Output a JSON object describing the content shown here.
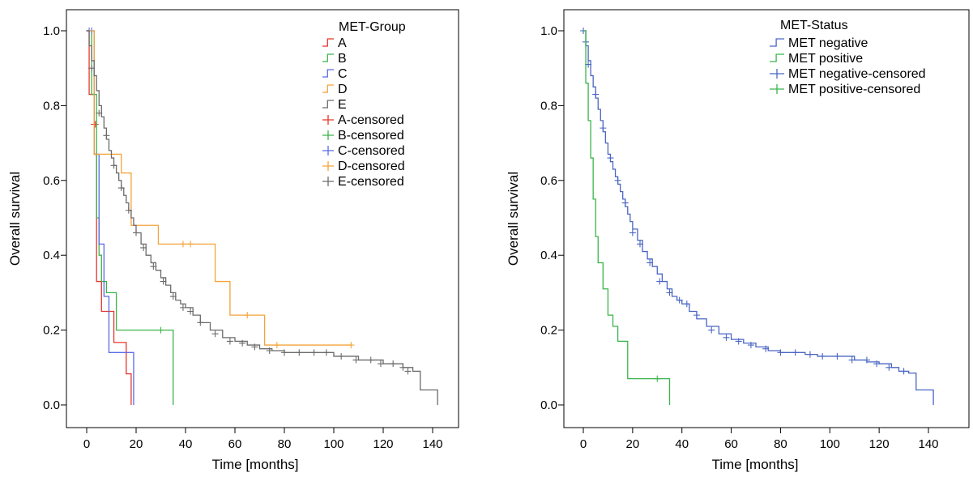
{
  "chart_data": [
    {
      "type": "line",
      "subtype": "kaplan-meier",
      "xlabel": "Time [months]",
      "ylabel": "Overall survival",
      "xlim": [
        -5,
        145
      ],
      "ylim": [
        -0.05,
        1.03
      ],
      "xticks": [
        "0",
        "20",
        "40",
        "60",
        "80",
        "100",
        "120",
        "140"
      ],
      "yticks": [
        "0.0",
        "0.2",
        "0.4",
        "0.6",
        "0.8",
        "1.0"
      ],
      "grid": false,
      "legend": {
        "title": "MET-Group",
        "placement": "top-right",
        "entries": [
          "A",
          "B",
          "C",
          "D",
          "E",
          "A-censored",
          "B-censored",
          "C-censored",
          "D-censored",
          "E-censored"
        ]
      },
      "series": [
        {
          "name": "A",
          "color": "#e8352b",
          "x": [
            0,
            1,
            3,
            4,
            6,
            11,
            16,
            18
          ],
          "y": [
            1.0,
            0.83,
            0.67,
            0.33,
            0.25,
            0.167,
            0.083,
            0.0
          ],
          "censored": [
            [
              3,
              0.75
            ],
            [
              3.5,
              0.75
            ]
          ]
        },
        {
          "name": "B",
          "color": "#3ab54a",
          "x": [
            0,
            2,
            4,
            5,
            6,
            8,
            12,
            35
          ],
          "y": [
            1.0,
            0.83,
            0.5,
            0.4,
            0.33,
            0.3,
            0.2,
            0.0
          ],
          "censored": [
            [
              30,
              0.2
            ]
          ]
        },
        {
          "name": "C",
          "color": "#5a6be6",
          "x": [
            0,
            1,
            3,
            5,
            7,
            9,
            13,
            19
          ],
          "y": [
            1.0,
            1.0,
            0.67,
            0.43,
            0.29,
            0.14,
            0.14,
            0.0
          ],
          "censored": [
            [
              1,
              1.0
            ],
            [
              2,
              1.0
            ]
          ]
        },
        {
          "name": "D",
          "color": "#f4a33a",
          "x": [
            0,
            3,
            14,
            18,
            29,
            42,
            52,
            58,
            72,
            107
          ],
          "y": [
            1.0,
            0.67,
            0.62,
            0.48,
            0.43,
            0.43,
            0.33,
            0.24,
            0.16,
            0.16
          ],
          "censored": [
            [
              39,
              0.43
            ],
            [
              42,
              0.43
            ],
            [
              65,
              0.24
            ],
            [
              77,
              0.16
            ],
            [
              107,
              0.16
            ]
          ]
        },
        {
          "name": "E",
          "color": "#6b6b6b",
          "x": [
            0,
            1,
            2,
            3,
            4,
            5,
            6,
            7,
            8,
            9,
            10,
            11,
            12,
            13,
            14,
            15,
            16,
            17,
            18,
            19,
            20,
            22,
            24,
            26,
            28,
            30,
            32,
            34,
            36,
            38,
            40,
            43,
            46,
            50,
            55,
            60,
            65,
            70,
            75,
            80,
            85,
            90,
            95,
            100,
            105,
            110,
            115,
            120,
            125,
            128,
            132,
            135,
            142
          ],
          "y": [
            1.0,
            0.96,
            0.92,
            0.88,
            0.84,
            0.8,
            0.77,
            0.74,
            0.71,
            0.68,
            0.66,
            0.64,
            0.62,
            0.6,
            0.58,
            0.56,
            0.54,
            0.52,
            0.5,
            0.48,
            0.46,
            0.43,
            0.4,
            0.38,
            0.36,
            0.34,
            0.32,
            0.3,
            0.28,
            0.27,
            0.26,
            0.24,
            0.22,
            0.2,
            0.18,
            0.17,
            0.16,
            0.15,
            0.145,
            0.14,
            0.14,
            0.14,
            0.14,
            0.13,
            0.13,
            0.12,
            0.12,
            0.11,
            0.11,
            0.1,
            0.09,
            0.04,
            0.0
          ],
          "censored": [
            [
              2,
              0.9
            ],
            [
              5,
              0.78
            ],
            [
              8,
              0.72
            ],
            [
              11,
              0.64
            ],
            [
              14,
              0.58
            ],
            [
              17,
              0.52
            ],
            [
              20,
              0.46
            ],
            [
              23,
              0.42
            ],
            [
              27,
              0.37
            ],
            [
              31,
              0.33
            ],
            [
              35,
              0.29
            ],
            [
              39,
              0.26
            ],
            [
              42,
              0.25
            ],
            [
              46,
              0.22
            ],
            [
              52,
              0.19
            ],
            [
              58,
              0.17
            ],
            [
              63,
              0.165
            ],
            [
              68,
              0.155
            ],
            [
              74,
              0.145
            ],
            [
              80,
              0.14
            ],
            [
              86,
              0.14
            ],
            [
              92,
              0.14
            ],
            [
              97,
              0.14
            ],
            [
              103,
              0.13
            ],
            [
              109,
              0.12
            ],
            [
              115,
              0.12
            ],
            [
              119,
              0.11
            ],
            [
              124,
              0.11
            ],
            [
              128,
              0.1
            ],
            [
              130,
              0.09
            ]
          ]
        }
      ]
    },
    {
      "type": "line",
      "subtype": "kaplan-meier",
      "xlabel": "Time [months]",
      "ylabel": "Overall survival",
      "xlim": [
        -5,
        145
      ],
      "ylim": [
        -0.05,
        1.03
      ],
      "xticks": [
        "0",
        "20",
        "40",
        "60",
        "80",
        "100",
        "120",
        "140"
      ],
      "yticks": [
        "0.0",
        "0.2",
        "0.4",
        "0.6",
        "0.8",
        "1.0"
      ],
      "grid": false,
      "legend": {
        "title": "MET-Status",
        "placement": "top-right",
        "entries": [
          "MET negative",
          "MET positive",
          "MET negative-censored",
          "MET positive-censored"
        ]
      },
      "series": [
        {
          "name": "MET negative",
          "color": "#4a66c4",
          "x": [
            0,
            1,
            2,
            3,
            4,
            5,
            6,
            7,
            8,
            9,
            10,
            11,
            12,
            13,
            14,
            15,
            16,
            17,
            18,
            19,
            20,
            22,
            24,
            26,
            28,
            30,
            32,
            34,
            36,
            38,
            40,
            43,
            46,
            50,
            55,
            60,
            65,
            70,
            75,
            80,
            85,
            90,
            95,
            100,
            105,
            110,
            115,
            120,
            125,
            128,
            132,
            135,
            142
          ],
          "y": [
            1.0,
            0.96,
            0.92,
            0.88,
            0.85,
            0.82,
            0.79,
            0.76,
            0.73,
            0.7,
            0.67,
            0.65,
            0.63,
            0.61,
            0.59,
            0.57,
            0.55,
            0.53,
            0.51,
            0.49,
            0.47,
            0.44,
            0.41,
            0.39,
            0.37,
            0.35,
            0.33,
            0.31,
            0.29,
            0.28,
            0.27,
            0.25,
            0.23,
            0.21,
            0.19,
            0.175,
            0.165,
            0.155,
            0.145,
            0.14,
            0.14,
            0.135,
            0.13,
            0.13,
            0.13,
            0.12,
            0.115,
            0.11,
            0.1,
            0.09,
            0.085,
            0.04,
            0.0
          ],
          "censored": [
            [
              0,
              1.0
            ],
            [
              1,
              0.97
            ],
            [
              2,
              0.91
            ],
            [
              5,
              0.83
            ],
            [
              8,
              0.74
            ],
            [
              11,
              0.66
            ],
            [
              14,
              0.6
            ],
            [
              17,
              0.54
            ],
            [
              20,
              0.46
            ],
            [
              23,
              0.43
            ],
            [
              27,
              0.38
            ],
            [
              31,
              0.33
            ],
            [
              35,
              0.3
            ],
            [
              39,
              0.28
            ],
            [
              42,
              0.27
            ],
            [
              46,
              0.24
            ],
            [
              52,
              0.2
            ],
            [
              58,
              0.18
            ],
            [
              63,
              0.17
            ],
            [
              68,
              0.16
            ],
            [
              74,
              0.15
            ],
            [
              80,
              0.14
            ],
            [
              86,
              0.14
            ],
            [
              92,
              0.135
            ],
            [
              97,
              0.13
            ],
            [
              103,
              0.13
            ],
            [
              109,
              0.12
            ],
            [
              115,
              0.12
            ],
            [
              119,
              0.11
            ],
            [
              124,
              0.1
            ],
            [
              130,
              0.09
            ]
          ]
        },
        {
          "name": "MET positive",
          "color": "#3ab54a",
          "x": [
            0,
            1,
            2,
            3,
            4,
            5,
            6,
            8,
            10,
            12,
            14,
            18,
            31,
            35
          ],
          "y": [
            1.0,
            0.86,
            0.76,
            0.66,
            0.55,
            0.45,
            0.38,
            0.31,
            0.24,
            0.21,
            0.17,
            0.07,
            0.07,
            0.0
          ],
          "censored": [
            [
              30,
              0.07
            ]
          ]
        }
      ]
    }
  ]
}
